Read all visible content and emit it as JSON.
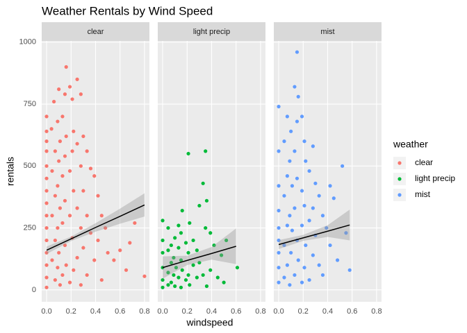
{
  "chart_data": {
    "type": "scatter",
    "title": "Weather Rentals by Wind Speed",
    "x_label": "windspeed",
    "y_label": "rentals",
    "legend_title": "weather",
    "xlim": [
      -0.04,
      0.84
    ],
    "ylim": [
      -48,
      1005
    ],
    "xticks": [
      {
        "value": 0,
        "label": "0.0"
      },
      0.2,
      0.4,
      0.6,
      0.8
    ],
    "yticks": [
      0,
      250,
      500,
      750,
      1000
    ],
    "grid": true,
    "panels": [
      {
        "name": "clear",
        "color": "#F8766D",
        "x": [
          0,
          0,
          0,
          0,
          0,
          0,
          0,
          0,
          0,
          0,
          0,
          0,
          0,
          0,
          0,
          0.04,
          0.045,
          0.045,
          0.045,
          0.06,
          0.07,
          0.07,
          0.07,
          0.07,
          0.09,
          0.09,
          0.09,
          0.09,
          0.1,
          0.1,
          0.1,
          0.11,
          0.11,
          0.11,
          0.13,
          0.13,
          0.13,
          0.13,
          0.15,
          0.15,
          0.15,
          0.15,
          0.16,
          0.16,
          0.16,
          0.19,
          0.19,
          0.19,
          0.19,
          0.21,
          0.21,
          0.21,
          0.22,
          0.22,
          0.22,
          0.25,
          0.25,
          0.25,
          0.25,
          0.28,
          0.28,
          0.28,
          0.28,
          0.3,
          0.3,
          0.3,
          0.33,
          0.33,
          0.33,
          0.36,
          0.36,
          0.39,
          0.39,
          0.42,
          0.42,
          0.45,
          0.45,
          0.48,
          0.5,
          0.55,
          0.6,
          0.65,
          0.68,
          0.72,
          0.8
        ],
        "y": [
          700,
          640,
          600,
          560,
          500,
          450,
          400,
          350,
          300,
          250,
          200,
          150,
          100,
          50,
          10,
          650,
          480,
          300,
          120,
          760,
          560,
          380,
          200,
          40,
          680,
          420,
          250,
          90,
          810,
          520,
          150,
          600,
          330,
          20,
          700,
          460,
          270,
          60,
          790,
          540,
          360,
          180,
          900,
          620,
          100,
          820,
          480,
          300,
          30,
          770,
          560,
          210,
          640,
          400,
          80,
          850,
          590,
          330,
          130,
          790,
          500,
          250,
          20,
          620,
          400,
          170,
          560,
          300,
          60,
          490,
          230,
          460,
          120,
          380,
          200,
          300,
          40,
          250,
          150,
          120,
          160,
          80,
          190,
          270,
          55
        ],
        "fit": {
          "x": [
            0,
            0.2,
            0.4,
            0.6,
            0.8
          ],
          "y": [
            160,
            206,
            252,
            297,
            343
          ],
          "lower": [
            145,
            197,
            235,
            267,
            296
          ],
          "upper": [
            175,
            215,
            269,
            328,
            390
          ]
        }
      },
      {
        "name": "light precip",
        "color": "#00BA38",
        "x": [
          0,
          0,
          0,
          0,
          0,
          0,
          0.045,
          0.045,
          0.045,
          0.045,
          0.07,
          0.07,
          0.07,
          0.09,
          0.09,
          0.1,
          0.1,
          0.11,
          0.13,
          0.13,
          0.13,
          0.15,
          0.15,
          0.15,
          0.16,
          0.16,
          0.19,
          0.19,
          0.21,
          0.21,
          0.21,
          0.22,
          0.22,
          0.25,
          0.25,
          0.28,
          0.28,
          0.3,
          0.3,
          0.33,
          0.33,
          0.35,
          0.35,
          0.36,
          0.36,
          0.39,
          0.39,
          0.42,
          0.45,
          0.48,
          0.5,
          0.52,
          0.61
        ],
        "y": [
          280,
          200,
          150,
          90,
          40,
          10,
          250,
          160,
          70,
          20,
          180,
          110,
          30,
          130,
          60,
          210,
          15,
          90,
          260,
          170,
          50,
          230,
          120,
          10,
          320,
          80,
          190,
          40,
          550,
          150,
          60,
          270,
          20,
          200,
          100,
          160,
          50,
          340,
          110,
          430,
          60,
          560,
          250,
          360,
          15,
          230,
          80,
          180,
          50,
          140,
          30,
          200,
          90
        ],
        "fit": {
          "x": [
            0,
            0.2,
            0.4,
            0.6
          ],
          "y": [
            90,
            119,
            147,
            176
          ],
          "lower": [
            45,
            100,
            122,
            104
          ],
          "upper": [
            135,
            138,
            173,
            248
          ]
        }
      },
      {
        "name": "mist",
        "color": "#619CFF",
        "x": [
          0,
          0,
          0,
          0,
          0,
          0,
          0,
          0,
          0,
          0.045,
          0.045,
          0.045,
          0.045,
          0.07,
          0.07,
          0.07,
          0.07,
          0.09,
          0.09,
          0.09,
          0.1,
          0.1,
          0.11,
          0.11,
          0.13,
          0.13,
          0.13,
          0.13,
          0.15,
          0.15,
          0.15,
          0.15,
          0.16,
          0.16,
          0.19,
          0.19,
          0.19,
          0.19,
          0.21,
          0.21,
          0.21,
          0.22,
          0.22,
          0.25,
          0.25,
          0.25,
          0.28,
          0.28,
          0.28,
          0.3,
          0.3,
          0.33,
          0.33,
          0.36,
          0.36,
          0.39,
          0.42,
          0.42,
          0.45,
          0.48,
          0.52,
          0.55,
          0.58
        ],
        "y": [
          740,
          560,
          420,
          320,
          250,
          200,
          150,
          90,
          30,
          600,
          380,
          180,
          50,
          700,
          460,
          260,
          100,
          520,
          300,
          20,
          640,
          150,
          420,
          240,
          820,
          560,
          330,
          60,
          960,
          680,
          450,
          200,
          780,
          120,
          700,
          400,
          260,
          30,
          600,
          340,
          90,
          520,
          180,
          480,
          280,
          40,
          580,
          330,
          140,
          430,
          220,
          380,
          100,
          300,
          60,
          250,
          420,
          180,
          370,
          120,
          500,
          230,
          80
        ],
        "fit": {
          "x": [
            0,
            0.2,
            0.4,
            0.58
          ],
          "y": [
            183,
            210,
            237,
            262
          ],
          "lower": [
            165,
            198,
            214,
            200
          ],
          "upper": [
            201,
            222,
            261,
            324
          ]
        }
      }
    ]
  }
}
